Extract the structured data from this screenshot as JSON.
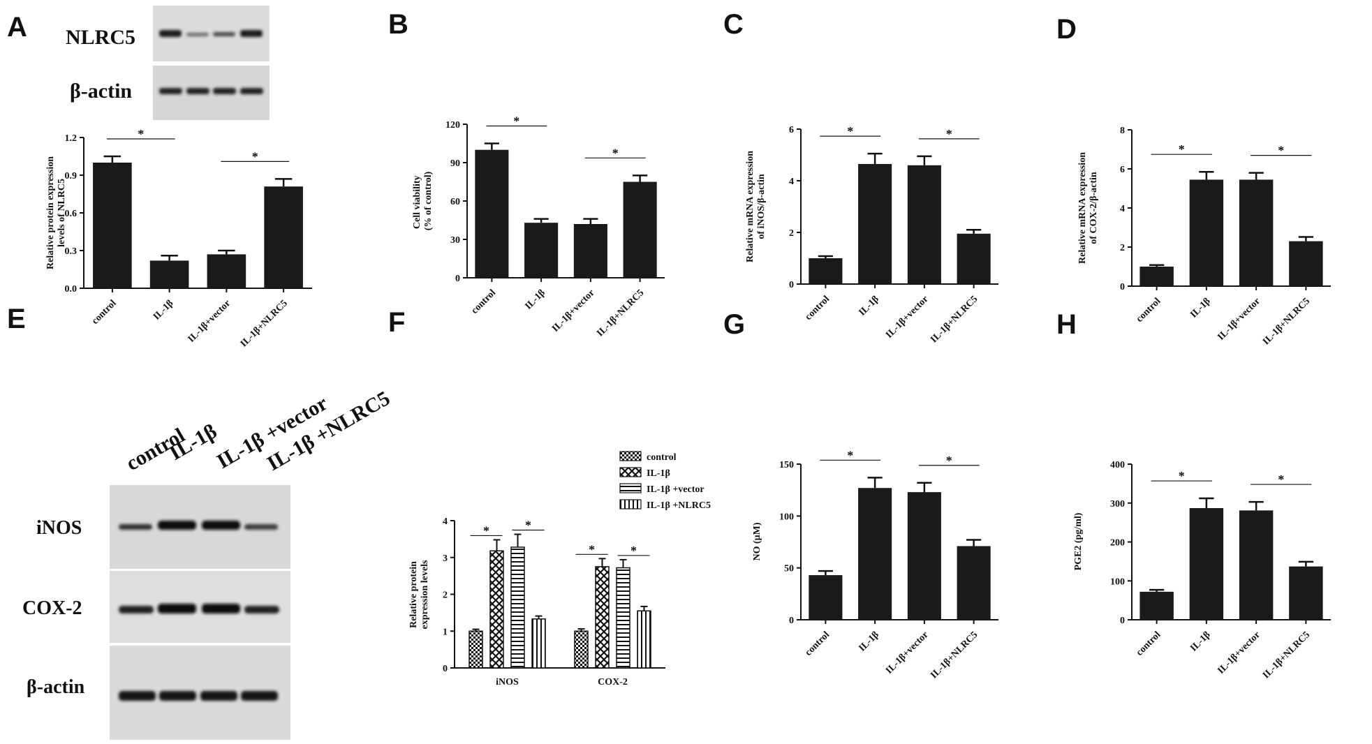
{
  "colors": {
    "bar": "#1a1a1a",
    "axis": "#111111",
    "blot_bg": "#dcdcdc",
    "band": "#1c1c1c"
  },
  "panels": {
    "A": {
      "letter": "A",
      "blot_labels": [
        "NLRC5",
        "β-actin"
      ]
    },
    "B": {
      "letter": "B"
    },
    "C": {
      "letter": "C"
    },
    "D": {
      "letter": "D"
    },
    "E": {
      "letter": "E",
      "lane_labels": [
        "control",
        "IL-1β",
        "IL-1β +vector",
        "IL-1β +NLRC5"
      ],
      "blot_labels": [
        "iNOS",
        "COX-2",
        "β-actin"
      ]
    },
    "F": {
      "letter": "F"
    },
    "G": {
      "letter": "G"
    },
    "H": {
      "letter": "H"
    }
  },
  "chart_data": [
    {
      "panel": "A",
      "type": "bar",
      "categories": [
        "control",
        "IL-1β",
        "IL-1β+vector",
        "IL-1β+NLRC5"
      ],
      "values": [
        1.0,
        0.22,
        0.27,
        0.81
      ],
      "errors": [
        0.05,
        0.04,
        0.03,
        0.06
      ],
      "ylabel": "Relative  protein expression levels of NLRC5",
      "ylim": [
        0,
        1.2
      ],
      "yticks": [
        "0.0",
        "0.3",
        "0.6",
        "0.9",
        "1.2"
      ],
      "significance": [
        {
          "from": 0,
          "to": 1,
          "label": "*"
        },
        {
          "from": 2,
          "to": 3,
          "label": "*"
        }
      ]
    },
    {
      "panel": "B",
      "type": "bar",
      "categories": [
        "control",
        "IL-1β",
        "IL-1β+vector",
        "IL-1β+NLRC5"
      ],
      "values": [
        100,
        43,
        42,
        75
      ],
      "errors": [
        5,
        3,
        4,
        5
      ],
      "ylabel": "Cell viability  (% of control)",
      "ylim": [
        0,
        120
      ],
      "yticks": [
        "0",
        "30",
        "60",
        "90",
        "120"
      ],
      "significance": [
        {
          "from": 0,
          "to": 1,
          "label": "*"
        },
        {
          "from": 2,
          "to": 3,
          "label": "*"
        }
      ]
    },
    {
      "panel": "C",
      "type": "bar",
      "categories": [
        "control",
        "IL-1β",
        "IL-1β+vector",
        "IL-1β+NLRC5"
      ],
      "values": [
        1.0,
        4.65,
        4.6,
        1.95
      ],
      "errors": [
        0.08,
        0.4,
        0.35,
        0.15
      ],
      "ylabel": "Relative mRNA expression of iNOS/β-actin",
      "ylim": [
        0,
        6
      ],
      "yticks": [
        "0",
        "2",
        "4",
        "6"
      ],
      "significance": [
        {
          "from": 0,
          "to": 1,
          "label": "*"
        },
        {
          "from": 2,
          "to": 3,
          "label": "*"
        }
      ]
    },
    {
      "panel": "D",
      "type": "bar",
      "categories": [
        "control",
        "IL-1β",
        "IL-1β+vector",
        "IL-1β+NLRC5"
      ],
      "values": [
        1.0,
        5.45,
        5.45,
        2.3
      ],
      "errors": [
        0.08,
        0.4,
        0.35,
        0.22
      ],
      "ylabel": "Relative mRNA expression of COX-2/β-actin",
      "ylim": [
        0,
        8
      ],
      "yticks": [
        "0",
        "2",
        "4",
        "6",
        "8"
      ],
      "significance": [
        {
          "from": 0,
          "to": 1,
          "label": "*"
        },
        {
          "from": 2,
          "to": 3,
          "label": "*"
        }
      ]
    },
    {
      "panel": "F",
      "type": "grouped_bar",
      "categories": [
        "iNOS",
        "COX-2"
      ],
      "series": [
        {
          "name": "control",
          "values": [
            1.0,
            1.0
          ],
          "errors": [
            0.05,
            0.06
          ],
          "pattern": "checker"
        },
        {
          "name": "IL-1β",
          "values": [
            3.18,
            2.75
          ],
          "errors": [
            0.3,
            0.22
          ],
          "pattern": "cross"
        },
        {
          "name": "IL-1β +vector",
          "values": [
            3.28,
            2.72
          ],
          "errors": [
            0.35,
            0.22
          ],
          "pattern": "hstripe"
        },
        {
          "name": "IL-1β +NLRC5",
          "values": [
            1.33,
            1.55
          ],
          "errors": [
            0.08,
            0.12
          ],
          "pattern": "vstripe"
        }
      ],
      "ylabel": "Relative protein expression levels",
      "ylim": [
        0,
        4
      ],
      "yticks": [
        "0",
        "1",
        "2",
        "3",
        "4"
      ],
      "legend": "top-right",
      "significance": [
        {
          "group": 0,
          "from": 0,
          "to": 1,
          "label": "*"
        },
        {
          "group": 0,
          "from": 2,
          "to": 3,
          "label": "*"
        },
        {
          "group": 1,
          "from": 0,
          "to": 1,
          "label": "*"
        },
        {
          "group": 1,
          "from": 2,
          "to": 3,
          "label": "*"
        }
      ]
    },
    {
      "panel": "G",
      "type": "bar",
      "categories": [
        "control",
        "IL-1β",
        "IL-1β+vector",
        "IL-1β+NLRC5"
      ],
      "values": [
        43,
        127,
        123,
        71
      ],
      "errors": [
        4,
        10,
        9,
        6
      ],
      "ylabel": "NO (μM)",
      "ylim": [
        0,
        150
      ],
      "yticks": [
        "0",
        "50",
        "100",
        "150"
      ],
      "significance": [
        {
          "from": 0,
          "to": 1,
          "label": "*"
        },
        {
          "from": 2,
          "to": 3,
          "label": "*"
        }
      ]
    },
    {
      "panel": "H",
      "type": "bar",
      "categories": [
        "control",
        "IL-1β",
        "IL-1β+vector",
        "IL-1β+NLRC5"
      ],
      "values": [
        72,
        287,
        281,
        137
      ],
      "errors": [
        5,
        25,
        22,
        12
      ],
      "ylabel": "PGE2 (pg/ml)",
      "ylim": [
        0,
        400
      ],
      "yticks": [
        "0",
        "100",
        "200",
        "300",
        "400"
      ],
      "significance": [
        {
          "from": 0,
          "to": 1,
          "label": "*"
        },
        {
          "from": 2,
          "to": 3,
          "label": "*"
        }
      ]
    }
  ]
}
